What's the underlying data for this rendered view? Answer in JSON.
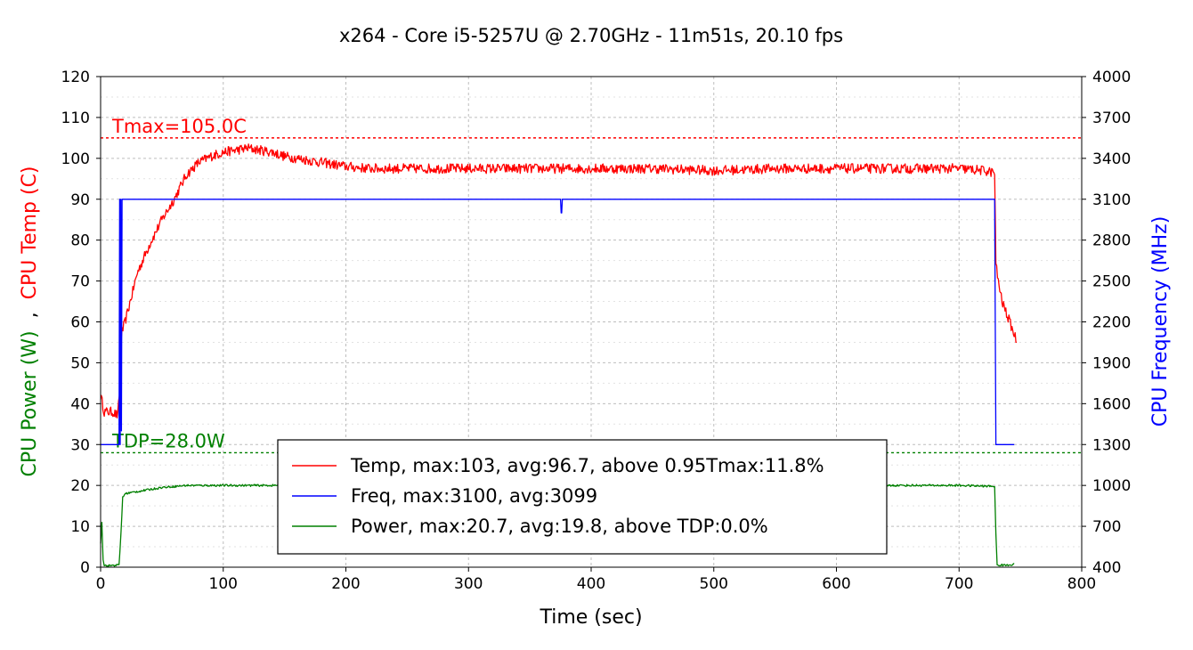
{
  "chart_data": {
    "type": "line",
    "title": "x264 - Core i5-5257U @ 2.70GHz - 11m51s, 20.10 fps",
    "xlabel": "Time (sec)",
    "ylabel_left_top": "CPU Temp (C)",
    "ylabel_left_sep": ",",
    "ylabel_left_bottom": "CPU Power (W)",
    "ylabel_right": "CPU Frequency (MHz)",
    "xlim": [
      0,
      800
    ],
    "ylim_left": [
      0,
      120
    ],
    "ylim_right": [
      400,
      4000
    ],
    "x_ticks": [
      "0",
      "100",
      "200",
      "300",
      "400",
      "500",
      "600",
      "700",
      "800"
    ],
    "y_ticks_left": [
      "0",
      "10",
      "20",
      "30",
      "40",
      "50",
      "60",
      "70",
      "80",
      "90",
      "100",
      "110",
      "120"
    ],
    "y_ticks_right": [
      "400",
      "700",
      "1000",
      "1300",
      "1600",
      "1900",
      "2200",
      "2500",
      "2800",
      "3100",
      "3400",
      "3700",
      "4000"
    ],
    "grid": true,
    "reference_lines": [
      {
        "label": "Tmax=105.0C",
        "y": 105.0,
        "axis": "left",
        "color": "#ff0000"
      },
      {
        "label": "TDP=28.0W",
        "y": 28.0,
        "axis": "left",
        "color": "#008000"
      }
    ],
    "legend_placement": "bottom-center",
    "series": [
      {
        "name": "Temp, max:103, avg:96.7, above 0.95Tmax:11.8%",
        "axis": "left",
        "color": "#ff0000",
        "x": [
          0,
          3,
          6,
          10,
          14,
          16,
          17,
          20,
          25,
          30,
          40,
          50,
          60,
          70,
          80,
          90,
          100,
          110,
          120,
          130,
          140,
          150,
          160,
          170,
          180,
          200,
          220,
          250,
          270,
          300,
          350,
          400,
          450,
          500,
          550,
          600,
          650,
          700,
          720,
          729,
          730,
          732,
          735,
          740,
          745,
          747
        ],
        "y": [
          42,
          38,
          38,
          38,
          37,
          45,
          57,
          60,
          66,
          72,
          79,
          85,
          90,
          96,
          99,
          100.5,
          101.5,
          102,
          102.5,
          102,
          101.5,
          100.5,
          100,
          99.5,
          99,
          98,
          97.5,
          97.5,
          97.5,
          97.5,
          97.5,
          97.5,
          97.5,
          97,
          97.5,
          97.5,
          97.5,
          97.5,
          97,
          96.5,
          74,
          70,
          65,
          61,
          57,
          55
        ]
      },
      {
        "name": "Freq, max:3100, avg:3099",
        "axis": "right",
        "color": "#0000ff",
        "x": [
          0,
          15,
          15.5,
          16,
          16.5,
          17,
          17.5,
          18,
          375,
          375.5,
          376,
          376.5,
          728,
          729,
          730,
          731,
          740,
          745
        ],
        "y": [
          1300,
          1300,
          3100,
          1300,
          3100,
          1400,
          3100,
          3100,
          3100,
          3000,
          3000,
          3100,
          3100,
          3100,
          1300,
          1300,
          1300,
          1300
        ]
      },
      {
        "name": "Power, max:20.7, avg:19.8, above TDP:0.0%",
        "axis": "left",
        "color": "#008000",
        "x": [
          0,
          1,
          2,
          3,
          6,
          10,
          15,
          16,
          18,
          20,
          30,
          50,
          70,
          100,
          150,
          200,
          300,
          400,
          500,
          600,
          700,
          725,
          728,
          729,
          730,
          731,
          735,
          740,
          745
        ],
        "y": [
          6,
          11,
          2,
          0.5,
          0.3,
          0.5,
          0.5,
          5,
          17,
          18,
          18.5,
          19.5,
          20,
          20,
          20,
          20,
          20,
          20,
          20,
          20,
          20,
          19.8,
          19.8,
          19.8,
          8,
          0.5,
          0.5,
          0.5,
          0.8
        ]
      }
    ]
  }
}
